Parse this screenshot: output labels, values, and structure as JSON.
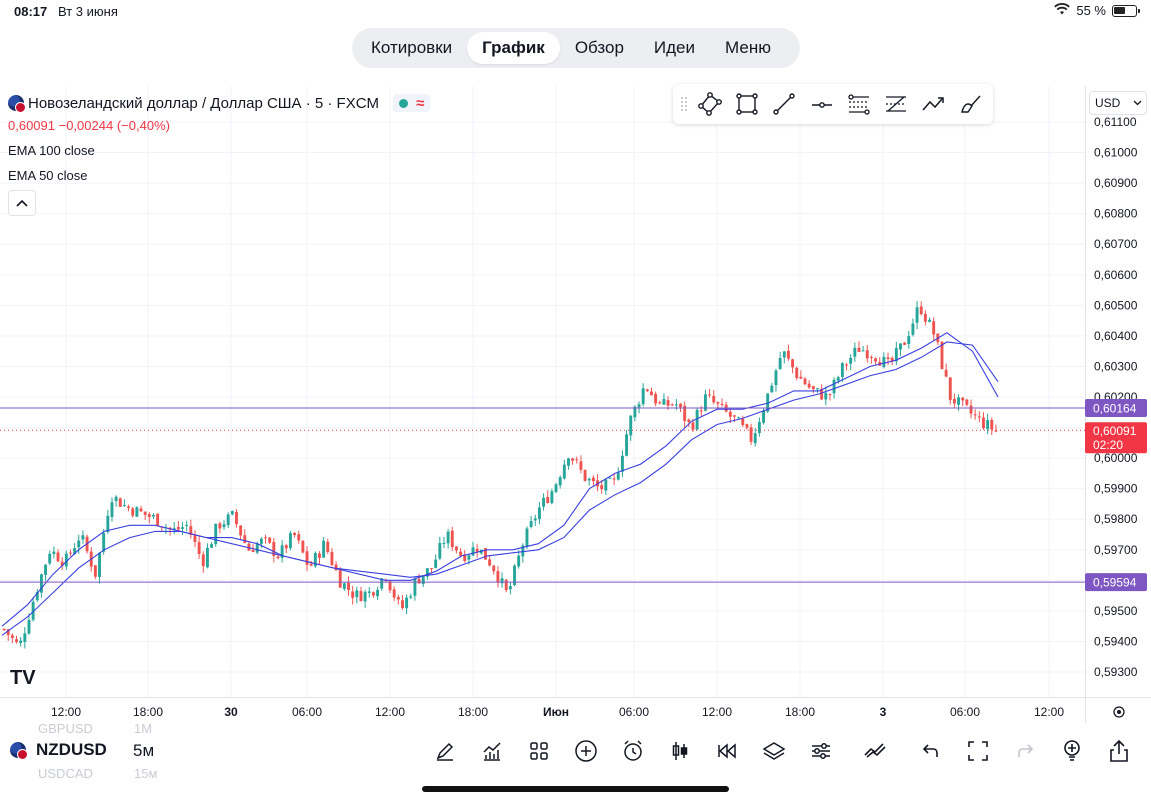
{
  "status_bar": {
    "time": "08:17",
    "date": "Вт 3 июня",
    "battery": "55 %",
    "battery_level": 0.55
  },
  "nav": {
    "tabs": [
      "Котировки",
      "График",
      "Обзор",
      "Идеи",
      "Меню"
    ],
    "active": "График"
  },
  "legend": {
    "symbol_title": "Новозеландский доллар / Доллар США · 5 · FXCM",
    "price": "0,60091",
    "change": "−0,00244",
    "change_pct": "(−0,40%)",
    "indicators": [
      "EMA 100 close",
      "EMA 50 close"
    ]
  },
  "drawing_tools": [
    "polygon-tool",
    "rectangle-tool",
    "trend-line-tool",
    "horizontal-ray-tool",
    "fib-retracement-tool",
    "pitchfork-tool",
    "arrow-path-tool",
    "brush-tool"
  ],
  "currency": "USD",
  "colors": {
    "up": "#26a69a",
    "down": "#ef5350",
    "ema": "#3b3fe0",
    "hline": "#7e57c2",
    "price_label": "#f23645",
    "grid": "#f0f3fa"
  },
  "chart_data": {
    "type": "candlestick",
    "symbol": "NZDUSD",
    "interval": "5м",
    "ylim": [
      0.5925,
      0.6115
    ],
    "y_ticks": [
      "0,61100",
      "0,61000",
      "0,60900",
      "0,60800",
      "0,60700",
      "0,60600",
      "0,60500",
      "0,60400",
      "0,60300",
      "0,60200",
      "0,60100",
      "0,60000",
      "0,59900",
      "0,59800",
      "0,59700",
      "0,59600",
      "0,59500",
      "0,59400",
      "0,59300"
    ],
    "x_ticks": [
      "12:00",
      "18:00",
      "30",
      "06:00",
      "12:00",
      "18:00",
      "Июн",
      "06:00",
      "12:00",
      "18:00",
      "3",
      "06:00",
      "12:00"
    ],
    "horizontal_lines": [
      {
        "label": "0,60164",
        "value": 0.60164
      },
      {
        "label": "0,59594",
        "value": 0.59594
      }
    ],
    "last_price": {
      "label": "0,60091",
      "countdown": "02:20",
      "value": 0.60091
    },
    "series_path": [
      0.5944,
      0.5938,
      0.5955,
      0.597,
      0.5966,
      0.5975,
      0.5962,
      0.5988,
      0.5984,
      0.5982,
      0.598,
      0.5976,
      0.5978,
      0.5966,
      0.5978,
      0.5981,
      0.597,
      0.5973,
      0.5968,
      0.5975,
      0.5964,
      0.5972,
      0.596,
      0.5955,
      0.5956,
      0.5962,
      0.595,
      0.596,
      0.5964,
      0.5975,
      0.5968,
      0.5971,
      0.5965,
      0.5955,
      0.5972,
      0.5983,
      0.599,
      0.6002,
      0.5994,
      0.599,
      0.5992,
      0.6012,
      0.6024,
      0.6017,
      0.6018,
      0.601,
      0.602,
      0.6016,
      0.6012,
      0.6006,
      0.602,
      0.6035,
      0.6027,
      0.6022,
      0.602,
      0.603,
      0.6036,
      0.6034,
      0.603,
      0.6038,
      0.605,
      0.604,
      0.602,
      0.6016,
      0.6012,
      0.6009
    ],
    "ema50": [
      0.5945,
      0.5952,
      0.5962,
      0.597,
      0.5976,
      0.5978,
      0.5978,
      0.5976,
      0.5974,
      0.5974,
      0.5972,
      0.5968,
      0.5966,
      0.5964,
      0.5962,
      0.596,
      0.596,
      0.5963,
      0.5968,
      0.597,
      0.597,
      0.5972,
      0.5978,
      0.599,
      0.5995,
      0.5998,
      0.6004,
      0.6012,
      0.6016,
      0.6016,
      0.6018,
      0.6022,
      0.6022,
      0.6026,
      0.603,
      0.6032,
      0.6036,
      0.6041,
      0.6035,
      0.602
    ],
    "ema100": [
      0.5942,
      0.5948,
      0.5956,
      0.5964,
      0.597,
      0.5974,
      0.5976,
      0.5976,
      0.5974,
      0.5972,
      0.597,
      0.5968,
      0.5966,
      0.5964,
      0.5963,
      0.5962,
      0.5961,
      0.5962,
      0.5965,
      0.5968,
      0.5969,
      0.597,
      0.5974,
      0.5983,
      0.5988,
      0.5992,
      0.5998,
      0.6006,
      0.6011,
      0.6013,
      0.6016,
      0.6019,
      0.6021,
      0.6024,
      0.6027,
      0.6029,
      0.6033,
      0.6038,
      0.6037,
      0.6025
    ]
  },
  "bottom_bar": {
    "symbol": "NZDUSD",
    "interval": "5м",
    "ghost_above": [
      "GBPUSD",
      "1М"
    ],
    "ghost_below": [
      "USDCAD",
      "15м"
    ],
    "tools": [
      "draw-pen",
      "indicators",
      "layouts",
      "add-symbol",
      "alert",
      "chart-type",
      "replay",
      "layers",
      "settings-sliders",
      "compare",
      "undo",
      "fullscreen",
      "redo",
      "add-alert-lightbulb",
      "share"
    ]
  },
  "logo_text": "TV"
}
